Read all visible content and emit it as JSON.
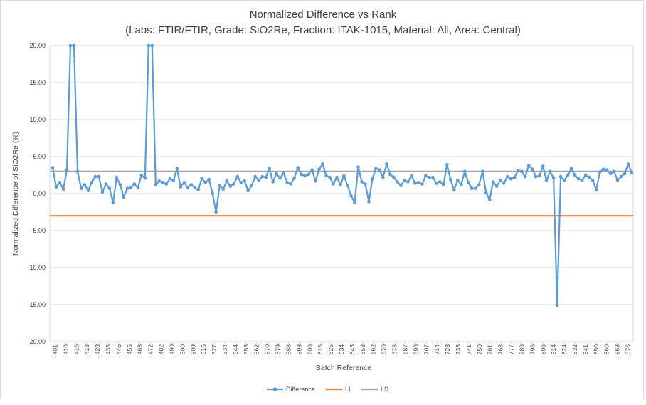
{
  "chart_data": {
    "type": "line",
    "title": "Normalized Difference vs Rank",
    "subtitle": "(Labs: FTIR/FTIR, Grade: SiO2Re, Fraction: ITAK-1015, Material: All, Area: Central)",
    "xlabel": "Batch Reference",
    "ylabel": "Normalized Difference of SiO2Re (%)",
    "ylim": [
      -20,
      20
    ],
    "ytick_step": 5,
    "ytick_labels": [
      "20,00",
      "15,00",
      "10,00",
      "5,00",
      "0,00",
      "-5,00",
      "-10,00",
      "-15,00",
      "-20,00"
    ],
    "grid": true,
    "legend_position": "bottom",
    "x_tick_labels": [
      "401",
      "410",
      "416",
      "418",
      "428",
      "435",
      "446",
      "455",
      "463",
      "472",
      "482",
      "490",
      "500",
      "509",
      "516",
      "527",
      "534",
      "544",
      "553",
      "562",
      "570",
      "579",
      "588",
      "598",
      "606",
      "615",
      "625",
      "634",
      "643",
      "653",
      "662",
      "670",
      "678",
      "687",
      "696",
      "707",
      "714",
      "723",
      "733",
      "741",
      "750",
      "761",
      "768",
      "777",
      "786",
      "796",
      "806",
      "814",
      "824",
      "832",
      "841",
      "850",
      "860",
      "868",
      "876"
    ],
    "series": [
      {
        "name": "Difference",
        "color": "#5b9bd5",
        "values": [
          3.5,
          0.9,
          1.5,
          0.6,
          3.2,
          20.0,
          20.0,
          3.0,
          0.7,
          1.2,
          0.4,
          1.5,
          2.3,
          2.3,
          0.2,
          1.3,
          0.7,
          -1.2,
          2.2,
          1.2,
          -0.5,
          0.7,
          0.8,
          1.3,
          0.8,
          2.5,
          2.1,
          20.0,
          20.0,
          1.2,
          1.7,
          1.5,
          1.3,
          2.0,
          1.8,
          3.4,
          0.9,
          1.5,
          0.8,
          1.2,
          0.8,
          0.5,
          2.1,
          1.5,
          1.9,
          0.0,
          -2.5,
          1.1,
          0.6,
          1.7,
          1.0,
          1.3,
          2.3,
          1.5,
          1.7,
          0.4,
          1.1,
          2.3,
          1.8,
          2.3,
          2.2,
          3.4,
          1.6,
          2.7,
          2.1,
          2.8,
          1.5,
          1.3,
          2.1,
          3.5,
          2.6,
          2.4,
          2.6,
          3.2,
          1.7,
          3.3,
          4.0,
          2.4,
          2.2,
          1.3,
          2.2,
          1.2,
          2.4,
          1.1,
          -0.3,
          -1.2,
          3.6,
          1.6,
          1.3,
          -1.1,
          2.0,
          3.4,
          3.2,
          2.2,
          4.0,
          2.6,
          2.2,
          1.6,
          1.1,
          1.8,
          1.6,
          2.4,
          1.4,
          1.5,
          1.3,
          2.4,
          2.2,
          2.2,
          1.4,
          1.6,
          1.2,
          3.9,
          1.9,
          0.5,
          1.8,
          1.2,
          3.0,
          1.5,
          0.7,
          0.7,
          1.2,
          3.0,
          0.1,
          -0.8,
          1.6,
          1.0,
          1.8,
          1.4,
          2.3,
          2.0,
          2.2,
          3.1,
          3.0,
          2.3,
          3.8,
          3.3,
          2.3,
          2.4,
          3.7,
          1.8,
          3.0,
          2.1,
          -15.1,
          2.3,
          1.8,
          2.5,
          3.4,
          2.5,
          2.0,
          1.8,
          2.5,
          2.2,
          1.8,
          0.5,
          2.9,
          3.3,
          3.2,
          2.7,
          3.0,
          1.8,
          2.3,
          2.7,
          4.0,
          2.8
        ]
      },
      {
        "name": "LI",
        "color": "#ed7d31",
        "constant": -3.0
      },
      {
        "name": "LS",
        "color": "#a5a5a5",
        "constant": 3.0
      }
    ]
  }
}
